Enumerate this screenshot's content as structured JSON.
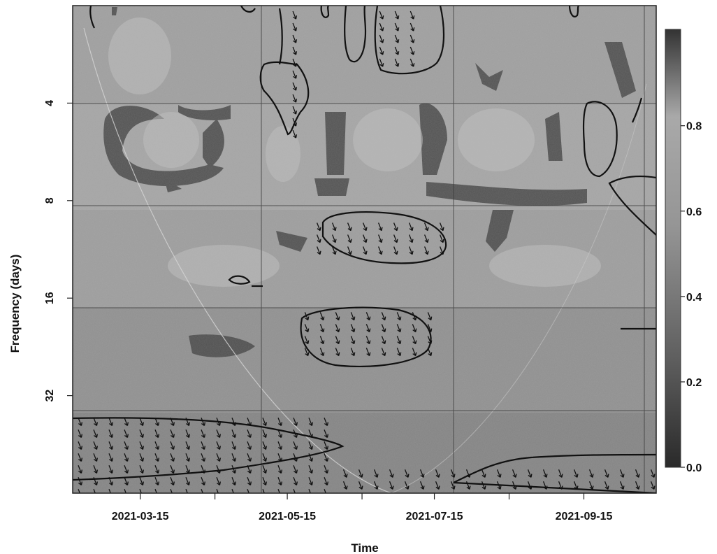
{
  "chart_data": {
    "type": "heatmap",
    "subtype": "wavelet-coherence",
    "title": "",
    "xlabel": "Time",
    "ylabel": "Frequency (days)",
    "x_ticks": [
      "2021-03-15",
      "2021-05-15",
      "2021-07-15",
      "2021-09-15"
    ],
    "xlim": [
      "2021-02-15",
      "2021-10-15"
    ],
    "y_ticks": [
      4,
      8,
      16,
      32
    ],
    "y_scale": "log2",
    "ylim": [
      2,
      64
    ],
    "y_reversed": true,
    "colorbar": {
      "ticks": [
        0.0,
        0.2,
        0.4,
        0.6,
        0.8
      ],
      "range": [
        0,
        1
      ],
      "colormap": "grayscale"
    },
    "grid": true,
    "significant_regions": [
      {
        "x": [
          "2021-05-15",
          "2021-05-25"
        ],
        "y": [
          2,
          5
        ],
        "phase_arrows": true
      },
      {
        "x": [
          "2021-06-20",
          "2021-07-10"
        ],
        "y": [
          2,
          3
        ],
        "phase_arrows": true
      },
      {
        "x": [
          "2021-05-25",
          "2021-07-20"
        ],
        "y": [
          9,
          12
        ],
        "phase_arrows": true
      },
      {
        "x": [
          "2021-05-20",
          "2021-07-15"
        ],
        "y": [
          17,
          24
        ],
        "phase_arrows": true
      },
      {
        "x": [
          "2021-09-15",
          "2021-09-28"
        ],
        "y": [
          4,
          7
        ],
        "phase_arrows": false
      },
      {
        "x": [
          "2021-09-25",
          "2021-10-15"
        ],
        "y": [
          7,
          11
        ],
        "phase_arrows": false
      },
      {
        "x": [
          "2021-02-15",
          "2021-06-05"
        ],
        "y": [
          36,
          64
        ],
        "phase_arrows": true
      },
      {
        "x": [
          "2021-06-05",
          "2021-10-15"
        ],
        "y": [
          52,
          64
        ],
        "phase_arrows": true
      }
    ]
  }
}
